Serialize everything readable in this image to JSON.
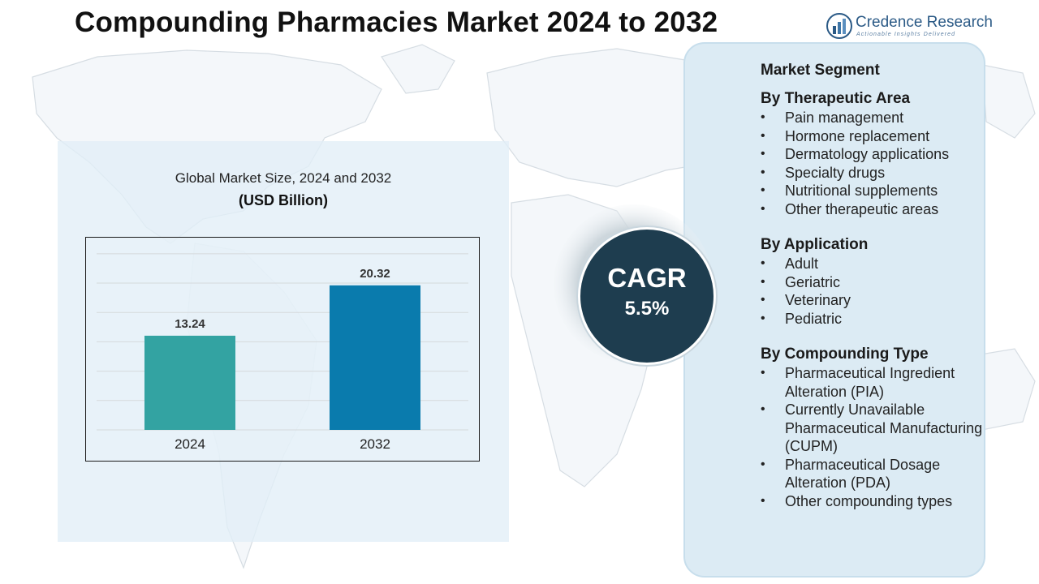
{
  "header": {
    "title": "Compounding Pharmacies Market  2024 to 2032",
    "brand_name": "Credence Research",
    "brand_tagline": "Actionable Insights Delivered"
  },
  "chart_data": {
    "type": "bar",
    "title": "Global Market Size, 2024 and 2032",
    "subtitle": "(USD Billion)",
    "categories": [
      "2024",
      "2032"
    ],
    "values": [
      13.24,
      20.32
    ],
    "value_labels": [
      "13.24",
      "20.32"
    ],
    "colors": [
      "#33a3a2",
      "#0a7bad"
    ],
    "ylim": [
      0,
      26
    ],
    "grid": true,
    "legend": "none"
  },
  "cagr": {
    "label": "CAGR",
    "value": "5.5%"
  },
  "segments": {
    "heading": "Market Segment",
    "groups": [
      {
        "title": "By Therapeutic Area",
        "items": [
          "Pain management",
          "Hormone replacement",
          "Dermatology applications",
          "Specialty drugs",
          "Nutritional supplements",
          "Other therapeutic areas"
        ]
      },
      {
        "title": "By Application",
        "items": [
          "Adult",
          "Geriatric",
          "Veterinary",
          "Pediatric"
        ]
      },
      {
        "title": "By Compounding Type",
        "items": [
          "Pharmaceutical Ingredient Alteration (PIA)",
          "Currently Unavailable Pharmaceutical Manufacturing (CUPM)",
          "Pharmaceutical Dosage Alteration (PDA)",
          "Other compounding types"
        ]
      }
    ]
  },
  "colors": {
    "panel_bg": "#e2eef7",
    "segment_panel_bg": "#dcebf4",
    "cagr_circle": "#1e3d4f",
    "brand": "#2b5a86"
  }
}
